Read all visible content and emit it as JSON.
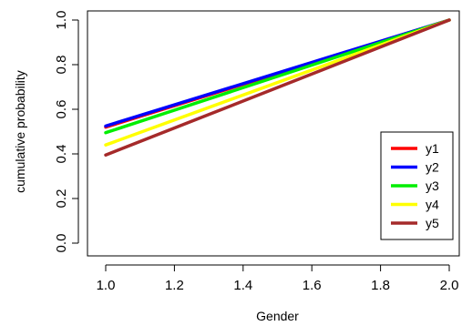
{
  "chart_data": {
    "type": "line",
    "title": "",
    "xlabel": "Gender",
    "ylabel": "cumulative probability",
    "xlim": [
      1.0,
      2.0
    ],
    "ylim": [
      0.0,
      1.0
    ],
    "x_ticks": [
      "1.0",
      "1.2",
      "1.4",
      "1.6",
      "1.8",
      "2.0"
    ],
    "y_ticks": [
      "0.0",
      "0.2",
      "0.4",
      "0.6",
      "0.8",
      "1.0"
    ],
    "grid": false,
    "legend_position": "bottom-right",
    "x": [
      1.0,
      2.0
    ],
    "series": [
      {
        "name": "y1",
        "color": "#ff0000",
        "values": [
          0.52,
          1.0
        ]
      },
      {
        "name": "y2",
        "color": "#0000ff",
        "values": [
          0.525,
          1.0
        ]
      },
      {
        "name": "y3",
        "color": "#00ee00",
        "values": [
          0.495,
          1.0
        ]
      },
      {
        "name": "y4",
        "color": "#ffff00",
        "values": [
          0.44,
          1.0
        ]
      },
      {
        "name": "y5",
        "color": "#a52a2a",
        "values": [
          0.395,
          1.0
        ]
      }
    ]
  }
}
